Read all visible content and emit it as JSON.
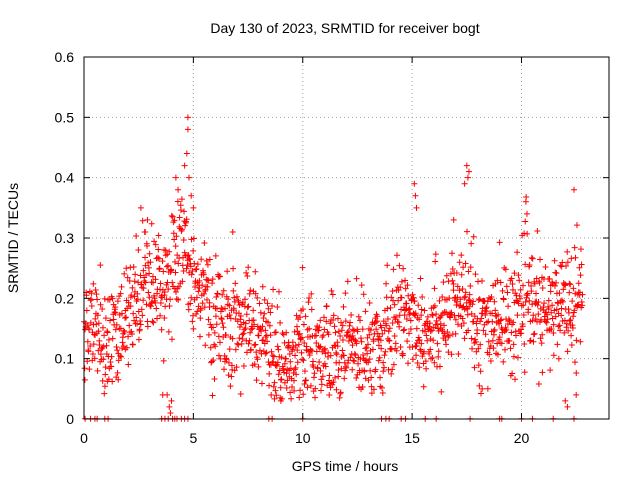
{
  "chart_data": {
    "type": "scatter",
    "title": "Day 130 of 2023, SRMTID for receiver bogt",
    "xlabel": "GPS time / hours",
    "ylabel": "SRMTID / TECUs",
    "xlim": [
      0,
      24
    ],
    "ylim": [
      0,
      0.6
    ],
    "xticks": [
      0,
      5,
      10,
      15,
      20
    ],
    "xtick_labels": [
      "0",
      "5",
      "10",
      "15",
      "20"
    ],
    "yticks": [
      0,
      0.1,
      0.2,
      0.3,
      0.4,
      0.5,
      0.6
    ],
    "ytick_labels": [
      "0",
      "0.1",
      "0.2",
      "0.3",
      "0.4",
      "0.5",
      "0.6"
    ],
    "grid": true,
    "marker": "+",
    "color": "#ff0000",
    "trend": [
      [
        0.0,
        0.16
      ],
      [
        0.5,
        0.15
      ],
      [
        1.0,
        0.12
      ],
      [
        1.5,
        0.13
      ],
      [
        2.0,
        0.17
      ],
      [
        2.5,
        0.22
      ],
      [
        3.0,
        0.24
      ],
      [
        3.5,
        0.22
      ],
      [
        4.0,
        0.25
      ],
      [
        4.5,
        0.28
      ],
      [
        5.0,
        0.24
      ],
      [
        5.5,
        0.2
      ],
      [
        6.0,
        0.16
      ],
      [
        6.5,
        0.15
      ],
      [
        7.0,
        0.15
      ],
      [
        7.5,
        0.16
      ],
      [
        8.0,
        0.14
      ],
      [
        8.5,
        0.11
      ],
      [
        9.0,
        0.08
      ],
      [
        9.5,
        0.09
      ],
      [
        10.0,
        0.11
      ],
      [
        10.5,
        0.12
      ],
      [
        11.0,
        0.12
      ],
      [
        11.5,
        0.12
      ],
      [
        12.0,
        0.12
      ],
      [
        12.5,
        0.12
      ],
      [
        13.0,
        0.13
      ],
      [
        13.5,
        0.13
      ],
      [
        14.0,
        0.14
      ],
      [
        14.5,
        0.18
      ],
      [
        15.0,
        0.17
      ],
      [
        15.5,
        0.15
      ],
      [
        16.0,
        0.16
      ],
      [
        16.5,
        0.17
      ],
      [
        17.0,
        0.18
      ],
      [
        17.5,
        0.2
      ],
      [
        18.0,
        0.15
      ],
      [
        18.5,
        0.16
      ],
      [
        19.0,
        0.17
      ],
      [
        19.5,
        0.16
      ],
      [
        20.0,
        0.2
      ],
      [
        20.5,
        0.19
      ],
      [
        21.0,
        0.17
      ],
      [
        21.5,
        0.18
      ],
      [
        22.0,
        0.2
      ],
      [
        22.5,
        0.21
      ],
      [
        22.8,
        0.2
      ]
    ],
    "spread": 0.045,
    "points_per_hour": 65,
    "outliers": [
      [
        4.75,
        0.5
      ],
      [
        4.75,
        0.48
      ],
      [
        4.7,
        0.44
      ],
      [
        4.6,
        0.42
      ],
      [
        4.8,
        0.4
      ],
      [
        4.2,
        0.4
      ],
      [
        4.3,
        0.38
      ],
      [
        4.9,
        0.37
      ],
      [
        5.0,
        0.35
      ],
      [
        2.6,
        0.35
      ],
      [
        2.9,
        0.33
      ],
      [
        2.8,
        0.31
      ],
      [
        17.5,
        0.42
      ],
      [
        17.6,
        0.41
      ],
      [
        17.55,
        0.4
      ],
      [
        17.4,
        0.39
      ],
      [
        15.1,
        0.39
      ],
      [
        15.15,
        0.37
      ],
      [
        15.2,
        0.35
      ],
      [
        20.2,
        0.36
      ],
      [
        20.25,
        0.34
      ],
      [
        22.4,
        0.38
      ],
      [
        6.8,
        0.31
      ],
      [
        16.9,
        0.33
      ],
      [
        3.8,
        0.04
      ],
      [
        3.9,
        0.02
      ],
      [
        3.95,
        0.01
      ],
      [
        4.0,
        0.03
      ],
      [
        3.6,
        0.04
      ],
      [
        22.0,
        0.03
      ],
      [
        22.1,
        0.02
      ],
      [
        22.5,
        0.04
      ],
      [
        18.2,
        0.05
      ],
      [
        9.0,
        0.03
      ]
    ],
    "zero_points": [
      0.05,
      0.3,
      0.5,
      0.6,
      0.95,
      1.1,
      3.55,
      3.7,
      3.85,
      4.05,
      4.15,
      4.25,
      4.45,
      4.6,
      4.75,
      8.45,
      8.6,
      10.0,
      13.6,
      13.8,
      13.95,
      14.5,
      14.7,
      15.6,
      16.1,
      17.65,
      19.0,
      19.1,
      20.0,
      20.5,
      21.45,
      22.4
    ]
  }
}
